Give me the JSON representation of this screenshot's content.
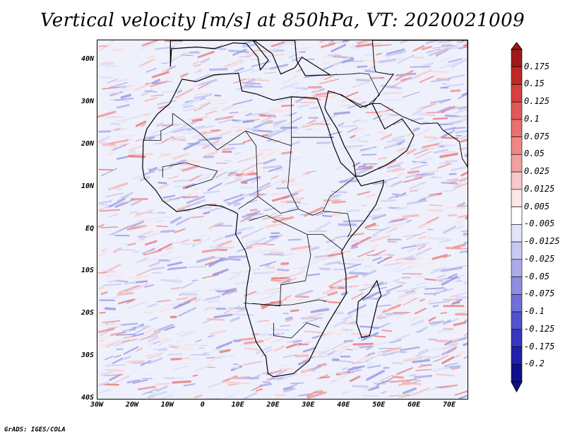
{
  "title": "Vertical velocity [m/s] at 850hPa, VT: 2020021009",
  "credit": "GrADS: IGES/COLA",
  "map": {
    "lon_range": [
      -30,
      75
    ],
    "lat_range": [
      -40,
      45
    ],
    "lat_ticks": [
      "40N",
      "30N",
      "20N",
      "10N",
      "EQ",
      "10S",
      "20S",
      "30S",
      "40S"
    ],
    "lon_ticks": [
      "30W",
      "20W",
      "10W",
      "0",
      "10E",
      "20E",
      "30E",
      "40E",
      "50E",
      "60E",
      "70E"
    ],
    "colors": {
      "coastline": "#000000",
      "background": "#eef0fb"
    }
  },
  "colorbar": {
    "labels": [
      "0.175",
      "0.15",
      "0.125",
      "0.1",
      "0.075",
      "0.05",
      "0.025",
      "0.0125",
      "0.005",
      "-0.005",
      "-0.0125",
      "-0.025",
      "-0.05",
      "-0.075",
      "-0.1",
      "-0.125",
      "-0.175",
      "-0.2"
    ],
    "colors": [
      "#a01818",
      "#c02828",
      "#d84040",
      "#e05858",
      "#e87070",
      "#ee8888",
      "#f2a0a0",
      "#f8c8c8",
      "#fce6e6",
      "#ffffff",
      "#e4e4f8",
      "#c8c8f0",
      "#ababe8",
      "#8e8ee0",
      "#7070d8",
      "#5252cc",
      "#3636bf",
      "#2020a8",
      "#10108a"
    ]
  }
}
